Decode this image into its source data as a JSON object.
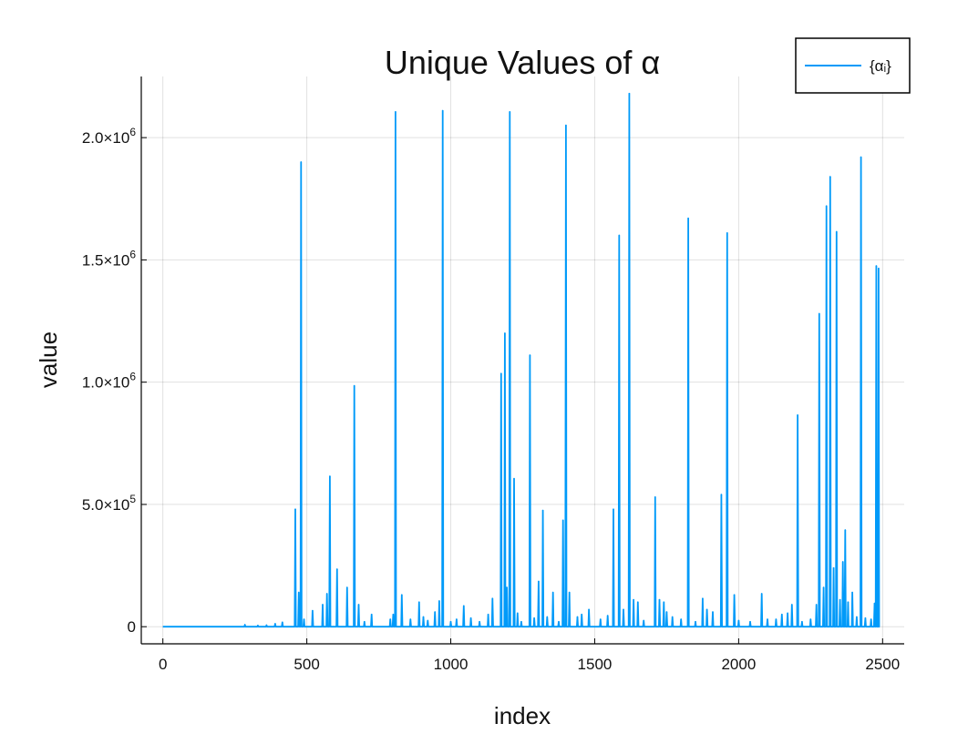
{
  "chart_data": {
    "type": "line",
    "title": "Unique Values of α",
    "xlabel": "index",
    "ylabel": "value",
    "xlim": [
      -75,
      2575
    ],
    "ylim": [
      -70000,
      2250000
    ],
    "xticks": [
      {
        "value": 0,
        "label": "0"
      },
      {
        "value": 500,
        "label": "500"
      },
      {
        "value": 1000,
        "label": "1000"
      },
      {
        "value": 1500,
        "label": "1500"
      },
      {
        "value": 2000,
        "label": "2000"
      },
      {
        "value": 2500,
        "label": "2500"
      }
    ],
    "yticks": [
      {
        "value": 0,
        "mantissa": "0",
        "exponent": ""
      },
      {
        "value": 500000,
        "mantissa": "5.0×10",
        "exponent": "5"
      },
      {
        "value": 1000000,
        "mantissa": "1.0×10",
        "exponent": "6"
      },
      {
        "value": 1500000,
        "mantissa": "1.5×10",
        "exponent": "6"
      },
      {
        "value": 2000000,
        "mantissa": "2.0×10",
        "exponent": "6"
      }
    ],
    "grid": true,
    "legend_position": "top-right",
    "series": [
      {
        "name": "{αᵢ}",
        "color": "#009af9",
        "x_max": 2490,
        "spikes": [
          [
            285,
            8000
          ],
          [
            330,
            5000
          ],
          [
            360,
            6000
          ],
          [
            390,
            12000
          ],
          [
            415,
            18000
          ],
          [
            460,
            480000
          ],
          [
            472,
            140000
          ],
          [
            480,
            1900000
          ],
          [
            490,
            30000
          ],
          [
            520,
            65000
          ],
          [
            555,
            90000
          ],
          [
            570,
            135000
          ],
          [
            580,
            615000
          ],
          [
            605,
            235000
          ],
          [
            640,
            160000
          ],
          [
            665,
            985000
          ],
          [
            680,
            90000
          ],
          [
            700,
            20000
          ],
          [
            725,
            50000
          ],
          [
            790,
            30000
          ],
          [
            800,
            50000
          ],
          [
            808,
            2105000
          ],
          [
            830,
            130000
          ],
          [
            860,
            30000
          ],
          [
            890,
            100000
          ],
          [
            905,
            40000
          ],
          [
            920,
            25000
          ],
          [
            945,
            60000
          ],
          [
            960,
            105000
          ],
          [
            972,
            2110000
          ],
          [
            1000,
            20000
          ],
          [
            1020,
            30000
          ],
          [
            1045,
            85000
          ],
          [
            1070,
            35000
          ],
          [
            1100,
            20000
          ],
          [
            1130,
            50000
          ],
          [
            1145,
            115000
          ],
          [
            1175,
            1035000
          ],
          [
            1188,
            1200000
          ],
          [
            1195,
            160000
          ],
          [
            1205,
            2105000
          ],
          [
            1220,
            605000
          ],
          [
            1232,
            55000
          ],
          [
            1245,
            20000
          ],
          [
            1275,
            1110000
          ],
          [
            1290,
            35000
          ],
          [
            1305,
            185000
          ],
          [
            1320,
            475000
          ],
          [
            1335,
            40000
          ],
          [
            1355,
            140000
          ],
          [
            1375,
            20000
          ],
          [
            1390,
            435000
          ],
          [
            1400,
            2050000
          ],
          [
            1412,
            140000
          ],
          [
            1440,
            40000
          ],
          [
            1455,
            50000
          ],
          [
            1480,
            70000
          ],
          [
            1520,
            30000
          ],
          [
            1545,
            45000
          ],
          [
            1565,
            480000
          ],
          [
            1585,
            1600000
          ],
          [
            1600,
            70000
          ],
          [
            1620,
            2180000
          ],
          [
            1635,
            110000
          ],
          [
            1650,
            100000
          ],
          [
            1670,
            25000
          ],
          [
            1710,
            530000
          ],
          [
            1725,
            110000
          ],
          [
            1740,
            100000
          ],
          [
            1750,
            60000
          ],
          [
            1770,
            40000
          ],
          [
            1800,
            30000
          ],
          [
            1825,
            1670000
          ],
          [
            1850,
            20000
          ],
          [
            1875,
            115000
          ],
          [
            1890,
            70000
          ],
          [
            1910,
            60000
          ],
          [
            1940,
            540000
          ],
          [
            1960,
            1610000
          ],
          [
            1985,
            130000
          ],
          [
            2000,
            25000
          ],
          [
            2040,
            20000
          ],
          [
            2080,
            135000
          ],
          [
            2100,
            30000
          ],
          [
            2130,
            30000
          ],
          [
            2150,
            50000
          ],
          [
            2170,
            55000
          ],
          [
            2185,
            90000
          ],
          [
            2205,
            865000
          ],
          [
            2220,
            20000
          ],
          [
            2250,
            30000
          ],
          [
            2270,
            90000
          ],
          [
            2280,
            1280000
          ],
          [
            2295,
            160000
          ],
          [
            2305,
            1720000
          ],
          [
            2318,
            1840000
          ],
          [
            2330,
            240000
          ],
          [
            2340,
            1615000
          ],
          [
            2352,
            110000
          ],
          [
            2362,
            265000
          ],
          [
            2370,
            395000
          ],
          [
            2380,
            100000
          ],
          [
            2395,
            140000
          ],
          [
            2410,
            40000
          ],
          [
            2425,
            1920000
          ],
          [
            2440,
            35000
          ],
          [
            2460,
            30000
          ],
          [
            2472,
            95000
          ],
          [
            2478,
            1475000
          ],
          [
            2486,
            1465000
          ]
        ]
      }
    ]
  }
}
